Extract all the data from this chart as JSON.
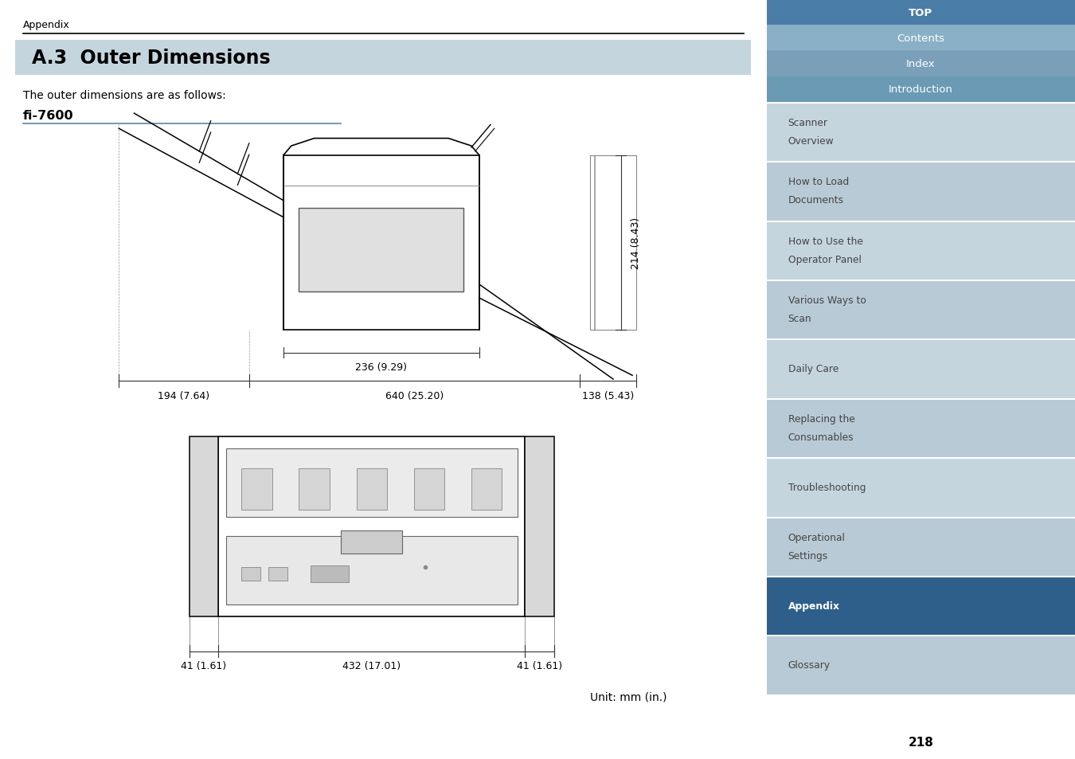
{
  "title": "A.3  Outer Dimensions",
  "header_text": "Appendix",
  "subtitle": "The outer dimensions are as follows:",
  "model": "fi-7600",
  "unit_text": "Unit: mm (in.)",
  "page_number": "218",
  "top_dims": {
    "dim1_label": "194 (7.64)",
    "dim2_label": "640 (25.20)",
    "dim3_label": "138 (5.43)",
    "dim4_label": "236 (9.29)",
    "dim5_label": "214 (8.43)"
  },
  "bottom_dims": {
    "dim1_label": "41 (1.61)",
    "dim2_label": "432 (17.01)",
    "dim3_label": "41 (1.61)"
  },
  "right_nav": {
    "top_items": [
      {
        "label": "TOP",
        "color": "#4a7ca8",
        "text_color": "#ffffff",
        "bold": true
      },
      {
        "label": "Contents",
        "color": "#8ab0c8",
        "text_color": "#ffffff",
        "bold": false
      },
      {
        "label": "Index",
        "color": "#7a9fb8",
        "text_color": "#ffffff",
        "bold": false
      },
      {
        "label": "Introduction",
        "color": "#6b9ab5",
        "text_color": "#ffffff",
        "bold": false
      }
    ],
    "nav_items": [
      {
        "label": "Scanner\nOverview",
        "active": false
      },
      {
        "label": "How to Load\nDocuments",
        "active": false
      },
      {
        "label": "How to Use the\nOperator Panel",
        "active": false
      },
      {
        "label": "Various Ways to\nScan",
        "active": false
      },
      {
        "label": "Daily Care",
        "active": false
      },
      {
        "label": "Replacing the\nConsumables",
        "active": false
      },
      {
        "label": "Troubleshooting",
        "active": false
      },
      {
        "label": "Operational\nSettings",
        "active": false
      },
      {
        "label": "Appendix",
        "active": true
      },
      {
        "label": "Glossary",
        "active": false
      }
    ],
    "nav_color_odd": "#c5d5de",
    "nav_color_even": "#b8cad5",
    "active_color": "#2d5f8a",
    "text_color": "#444444",
    "active_text_color": "#ffffff"
  },
  "colors": {
    "title_bg": "#c5d5de",
    "body_bg": "#ffffff",
    "header_line": "#000000",
    "dim_color": "#333333",
    "fi7600_line": "#5588aa"
  },
  "fig_width": 13.5,
  "fig_height": 9.54
}
